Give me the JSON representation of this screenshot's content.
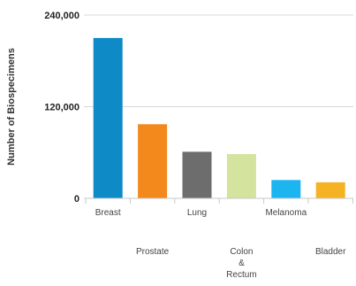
{
  "chart_data": {
    "type": "bar",
    "title": "",
    "xlabel": "",
    "ylabel": "Number of Biospecimens",
    "ylim": [
      0,
      240000
    ],
    "yticks": [
      0,
      120000,
      240000
    ],
    "ytick_labels": [
      "0",
      "120,000",
      "240,000"
    ],
    "grid": true,
    "categories": [
      "Breast",
      "Prostate",
      "Lung",
      "Colon & Rectum",
      "Melanoma",
      "Bladder"
    ],
    "category_label_lines": [
      [
        "Breast"
      ],
      [
        "Prostate"
      ],
      [
        "Lung"
      ],
      [
        "Colon",
        "&",
        "Rectum"
      ],
      [
        "Melanoma"
      ],
      [
        "Bladder"
      ]
    ],
    "values": [
      210000,
      97000,
      61000,
      58000,
      24000,
      21000
    ],
    "colors": [
      "#0e8ac6",
      "#f3881d",
      "#6d6d6d",
      "#d4e39d",
      "#1db5f0",
      "#f5b223"
    ]
  }
}
